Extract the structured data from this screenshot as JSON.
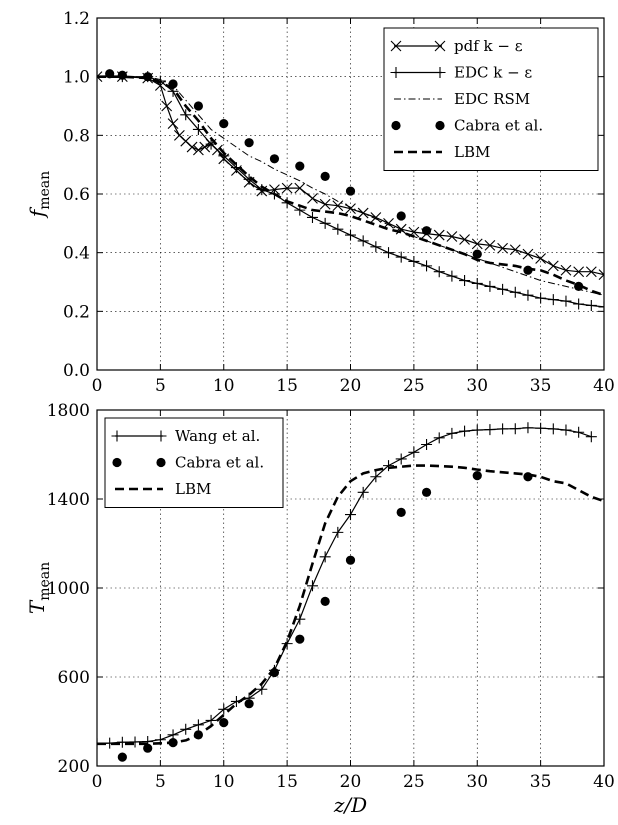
{
  "chart_data": [
    {
      "type": "line",
      "xlabel": "",
      "ylabel": "f_mean",
      "ylabel_main": "f",
      "ylabel_sub": "mean",
      "xlim": [
        0,
        40
      ],
      "ylim": [
        0.0,
        1.2
      ],
      "x_ticks": [
        "0",
        "5",
        "10",
        "15",
        "20",
        "25",
        "30",
        "35",
        "40"
      ],
      "y_ticks": [
        "0.0",
        "0.2",
        "0.4",
        "0.6",
        "0.8",
        "1.0",
        "1.2"
      ],
      "grid": true,
      "legend_position": "top-right",
      "series": [
        {
          "name": "pdf k − ε",
          "style": "solid-x",
          "x": [
            0,
            2,
            4,
            5,
            5.5,
            6,
            6.5,
            7,
            7.5,
            8,
            8.5,
            9,
            9.5,
            10,
            11,
            12,
            13,
            14,
            15,
            16,
            17,
            18,
            19,
            20,
            21,
            22,
            23,
            24,
            25,
            26,
            27,
            28,
            29,
            30,
            31,
            32,
            33,
            34,
            35,
            36,
            37,
            38,
            39,
            40
          ],
          "y": [
            1.0,
            1.0,
            0.995,
            0.97,
            0.9,
            0.84,
            0.8,
            0.78,
            0.76,
            0.75,
            0.76,
            0.77,
            0.75,
            0.72,
            0.68,
            0.64,
            0.61,
            0.615,
            0.62,
            0.62,
            0.585,
            0.565,
            0.56,
            0.55,
            0.535,
            0.52,
            0.5,
            0.48,
            0.47,
            0.465,
            0.46,
            0.455,
            0.445,
            0.43,
            0.425,
            0.415,
            0.41,
            0.395,
            0.38,
            0.355,
            0.34,
            0.335,
            0.335,
            0.325
          ]
        },
        {
          "name": "EDC k − ε",
          "style": "solid-plus",
          "x": [
            0,
            2,
            4,
            5,
            6,
            7,
            8,
            9,
            10,
            11,
            12,
            13,
            14,
            15,
            16,
            17,
            18,
            19,
            20,
            21,
            22,
            23,
            24,
            25,
            26,
            27,
            28,
            29,
            30,
            31,
            32,
            33,
            34,
            35,
            36,
            37,
            38,
            39,
            40
          ],
          "y": [
            1.0,
            1.0,
            1.0,
            0.985,
            0.95,
            0.87,
            0.82,
            0.77,
            0.73,
            0.69,
            0.65,
            0.615,
            0.6,
            0.57,
            0.545,
            0.52,
            0.5,
            0.48,
            0.46,
            0.44,
            0.42,
            0.4,
            0.385,
            0.37,
            0.355,
            0.335,
            0.32,
            0.305,
            0.295,
            0.285,
            0.275,
            0.265,
            0.255,
            0.245,
            0.24,
            0.235,
            0.225,
            0.22,
            0.215
          ]
        },
        {
          "name": "EDC RSM",
          "style": "dashdot",
          "x": [
            0,
            2,
            4,
            5,
            6,
            7,
            8,
            9,
            10,
            11,
            12,
            13,
            14,
            15,
            16,
            17,
            18,
            19,
            20,
            21,
            22,
            23,
            24,
            25,
            26,
            27,
            28,
            29,
            30,
            31,
            32,
            33,
            34,
            35,
            36,
            37,
            38,
            39,
            40
          ],
          "y": [
            1.0,
            1.0,
            1.0,
            0.99,
            0.97,
            0.92,
            0.87,
            0.82,
            0.79,
            0.76,
            0.73,
            0.71,
            0.685,
            0.665,
            0.645,
            0.62,
            0.6,
            0.575,
            0.555,
            0.535,
            0.515,
            0.495,
            0.475,
            0.455,
            0.44,
            0.425,
            0.41,
            0.395,
            0.38,
            0.365,
            0.35,
            0.335,
            0.32,
            0.305,
            0.295,
            0.285,
            0.275,
            0.265,
            0.255
          ]
        },
        {
          "name": "Cabra et al.",
          "style": "marker-dot",
          "x": [
            1,
            2,
            4,
            6,
            8,
            10,
            12,
            14,
            16,
            18,
            20,
            24,
            26,
            30,
            34,
            38
          ],
          "y": [
            1.01,
            1.005,
            1.0,
            0.975,
            0.9,
            0.84,
            0.775,
            0.72,
            0.695,
            0.66,
            0.61,
            0.525,
            0.475,
            0.395,
            0.34,
            0.285
          ]
        },
        {
          "name": "LBM",
          "style": "dashed",
          "x": [
            0,
            2,
            4,
            5,
            6,
            7,
            8,
            9,
            10,
            11,
            12,
            13,
            14,
            15,
            16,
            17,
            18,
            19,
            20,
            21,
            22,
            23,
            24,
            25,
            26,
            27,
            28,
            29,
            30,
            31,
            32,
            33,
            34,
            35,
            36,
            37,
            38,
            39,
            40
          ],
          "y": [
            1.0,
            1.0,
            0.995,
            0.98,
            0.96,
            0.9,
            0.85,
            0.79,
            0.74,
            0.7,
            0.66,
            0.625,
            0.6,
            0.575,
            0.56,
            0.545,
            0.54,
            0.535,
            0.525,
            0.51,
            0.495,
            0.48,
            0.47,
            0.455,
            0.44,
            0.425,
            0.41,
            0.395,
            0.375,
            0.365,
            0.36,
            0.355,
            0.345,
            0.34,
            0.325,
            0.305,
            0.29,
            0.27,
            0.255
          ]
        }
      ]
    },
    {
      "type": "line",
      "xlabel": "z/D",
      "ylabel": "T_mean",
      "ylabel_main": "T",
      "ylabel_sub": "mean",
      "xlim": [
        0,
        40
      ],
      "ylim": [
        200,
        1800
      ],
      "x_ticks": [
        "0",
        "5",
        "10",
        "15",
        "20",
        "25",
        "30",
        "35",
        "40"
      ],
      "y_ticks": [
        "200",
        "600",
        "1000",
        "1400",
        "1800"
      ],
      "grid": true,
      "legend_position": "top-left",
      "series": [
        {
          "name": "Wang et al.",
          "style": "solid-plus",
          "x": [
            0,
            1,
            2,
            3,
            4,
            5,
            6,
            7,
            8,
            9,
            10,
            11,
            12,
            13,
            14,
            15,
            16,
            17,
            18,
            19,
            20,
            21,
            22,
            23,
            24,
            25,
            26,
            27,
            28,
            29,
            30,
            31,
            32,
            33,
            34,
            35,
            36,
            37,
            38,
            39
          ],
          "y": [
            300,
            303,
            307,
            308,
            310,
            318,
            340,
            365,
            385,
            405,
            455,
            490,
            505,
            545,
            630,
            750,
            860,
            1010,
            1140,
            1250,
            1330,
            1430,
            1500,
            1550,
            1580,
            1610,
            1645,
            1675,
            1695,
            1705,
            1710,
            1712,
            1715,
            1716,
            1720,
            1718,
            1715,
            1710,
            1700,
            1680
          ]
        },
        {
          "name": "Cabra et al.",
          "style": "marker-dot",
          "x": [
            2,
            4,
            6,
            8,
            10,
            12,
            14,
            16,
            18,
            20,
            24,
            26,
            30,
            34
          ],
          "y": [
            240,
            280,
            305,
            340,
            395,
            480,
            620,
            770,
            940,
            1125,
            1340,
            1430,
            1505,
            1500
          ]
        },
        {
          "name": "LBM",
          "style": "dashed",
          "x": [
            0,
            2,
            4,
            5,
            6,
            7,
            8,
            9,
            10,
            11,
            12,
            13,
            14,
            15,
            16,
            17,
            18,
            19,
            20,
            21,
            22,
            23,
            24,
            25,
            26,
            27,
            28,
            29,
            30,
            31,
            32,
            33,
            34,
            35,
            36,
            37,
            38,
            39,
            40
          ],
          "y": [
            300,
            300,
            300,
            302,
            305,
            315,
            340,
            380,
            430,
            480,
            520,
            570,
            640,
            760,
            920,
            1110,
            1290,
            1410,
            1480,
            1515,
            1530,
            1540,
            1545,
            1550,
            1550,
            1548,
            1545,
            1540,
            1532,
            1525,
            1520,
            1515,
            1510,
            1500,
            1480,
            1470,
            1440,
            1410,
            1390
          ]
        }
      ]
    }
  ]
}
